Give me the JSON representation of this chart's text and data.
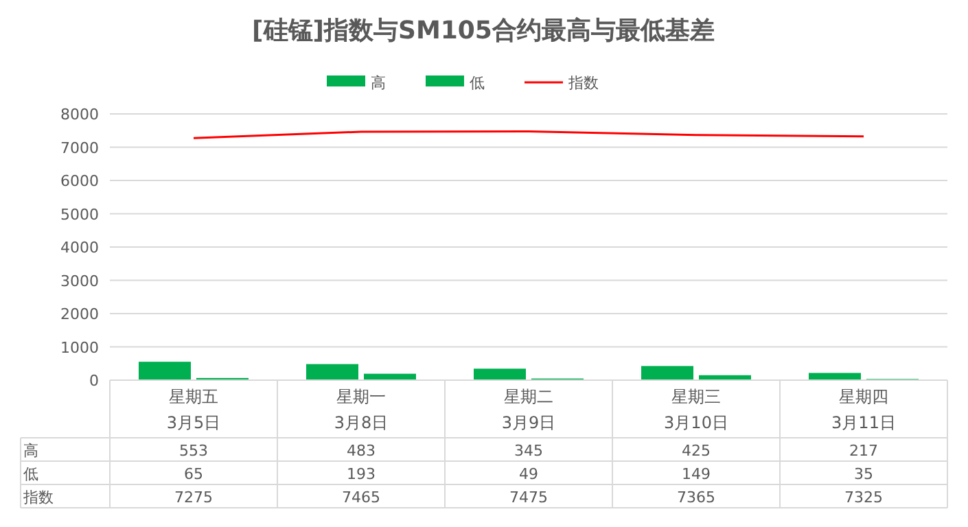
{
  "chart_data": {
    "type": "bar",
    "title": "[硅锰]指数与SM105合约最高与最低基差",
    "categories": [
      "星期五\n3月5日",
      "星期一\n3月8日",
      "星期二\n3月9日",
      "星期三\n3月10日",
      "星期四\n3月11日"
    ],
    "series": [
      {
        "name": "高",
        "color": "#00b050",
        "values": [
          553,
          483,
          345,
          425,
          217
        ]
      },
      {
        "name": "低",
        "color": "#00b050",
        "values": [
          65,
          193,
          49,
          149,
          35
        ]
      },
      {
        "name": "指数",
        "type": "line",
        "color": "#ff0000",
        "values": [
          7275,
          7465,
          7475,
          7365,
          7325
        ]
      }
    ],
    "ylim": [
      0,
      8000
    ],
    "yticks": [
      0,
      1000,
      2000,
      3000,
      4000,
      5000,
      6000,
      7000,
      8000
    ],
    "grid": "y",
    "legend": "top",
    "data_labels": true
  }
}
